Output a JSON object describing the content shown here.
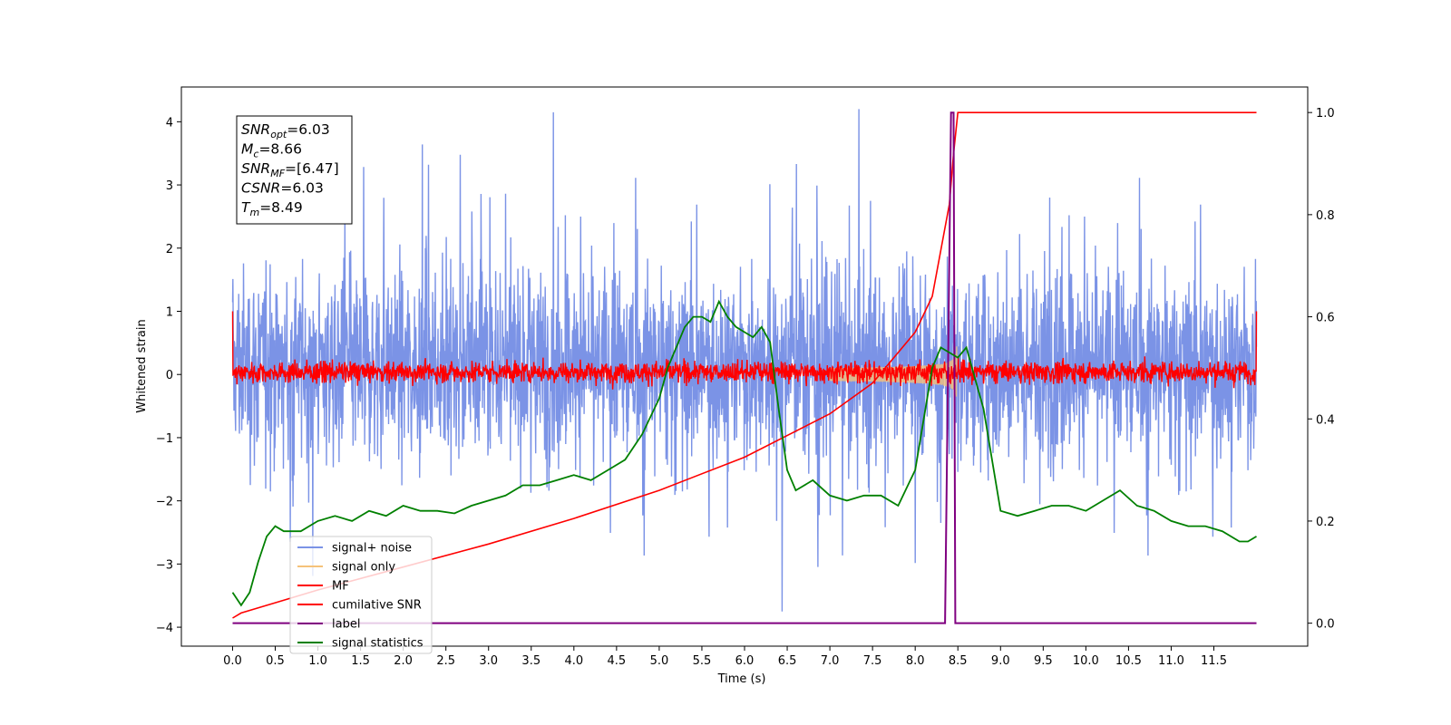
{
  "chart_data": {
    "type": "line",
    "xlabel": "Time (s)",
    "ylabel": "Whitened strain",
    "xlim": [
      -0.6,
      12.6
    ],
    "ylim": [
      -4.3,
      4.55
    ],
    "y2lim": [
      -0.045,
      1.05
    ],
    "x_ticks": [
      "0.0",
      "0.5",
      "1.0",
      "1.5",
      "2.0",
      "2.5",
      "3.0",
      "3.5",
      "4.0",
      "4.5",
      "5.0",
      "5.5",
      "6.0",
      "6.5",
      "7.0",
      "7.5",
      "8.0",
      "8.5",
      "9.0",
      "9.5",
      "10.0",
      "10.5",
      "11.0",
      "11.5"
    ],
    "y_ticks": [
      "4",
      "3",
      "2",
      "1",
      "0",
      "−1",
      "−2",
      "−3",
      "−4"
    ],
    "y2_ticks": [
      "1.0",
      "0.8",
      "0.6",
      "0.4",
      "0.2",
      "0.0"
    ],
    "annotation": [
      {
        "main": "SNR",
        "sub": "opt",
        "rest": "=6.03"
      },
      {
        "main": "M",
        "sub": "c",
        "rest": "=8.66"
      },
      {
        "main": "SNR",
        "sub": "MF",
        "rest": "=[6.47]"
      },
      {
        "main": "CSNR",
        "sub": "",
        "rest": "=6.03"
      },
      {
        "main": "T",
        "sub": "m",
        "rest": "=8.49"
      }
    ],
    "legend": [
      "signal+ noise",
      "signal only",
      "MF",
      "cumilative SNR",
      "label",
      "signal statistics"
    ],
    "legend_placement": "lower-left",
    "series": [
      {
        "name": "signal+ noise",
        "axis": "left",
        "color": "#7b93e6",
        "kind": "noise",
        "band": [
          -2.2,
          2.5
        ],
        "peaks": [
          4.15,
          -3.75
        ],
        "x_range": [
          0,
          12
        ]
      },
      {
        "name": "signal only",
        "axis": "left",
        "color": "#f5c27a",
        "kind": "chirp",
        "amplitude_max": 0.5,
        "merger_time": 8.49
      },
      {
        "name": "MF",
        "axis": "left",
        "color": "#ff0000",
        "kind": "noise",
        "band": [
          -0.25,
          0.35
        ],
        "edge_value": 1.0,
        "x_range": [
          0,
          12
        ]
      },
      {
        "name": "cumilative SNR",
        "axis": "right",
        "color": "#ff0000",
        "x": [
          0,
          0.1,
          0.5,
          1,
          2,
          3,
          4,
          5,
          6,
          7,
          7.5,
          8,
          8.2,
          8.4,
          8.45,
          8.5,
          10,
          12
        ],
        "y": [
          0.01,
          0.02,
          0.04,
          0.065,
          0.11,
          0.155,
          0.205,
          0.26,
          0.325,
          0.41,
          0.47,
          0.57,
          0.64,
          0.82,
          0.92,
          1.0,
          1.0,
          1.0
        ]
      },
      {
        "name": "label",
        "axis": "right",
        "color": "#800080",
        "x": [
          0,
          8.35,
          8.42,
          8.45,
          8.47,
          12
        ],
        "y": [
          0,
          0,
          1.0,
          1.0,
          0,
          0
        ]
      },
      {
        "name": "signal statistics",
        "axis": "right",
        "color": "#008000",
        "x": [
          0,
          0.1,
          0.2,
          0.3,
          0.4,
          0.5,
          0.6,
          0.8,
          1.0,
          1.2,
          1.4,
          1.6,
          1.8,
          2.0,
          2.2,
          2.4,
          2.6,
          2.8,
          3.0,
          3.2,
          3.4,
          3.6,
          3.8,
          4.0,
          4.2,
          4.4,
          4.6,
          4.8,
          5.0,
          5.1,
          5.2,
          5.3,
          5.4,
          5.5,
          5.6,
          5.7,
          5.8,
          5.9,
          6.0,
          6.1,
          6.2,
          6.3,
          6.4,
          6.5,
          6.6,
          6.8,
          7.0,
          7.2,
          7.4,
          7.6,
          7.8,
          8.0,
          8.1,
          8.2,
          8.3,
          8.4,
          8.5,
          8.6,
          8.7,
          8.8,
          8.9,
          9.0,
          9.2,
          9.4,
          9.6,
          9.8,
          10.0,
          10.2,
          10.4,
          10.6,
          10.8,
          11.0,
          11.2,
          11.4,
          11.6,
          11.8,
          11.9,
          12.0
        ],
        "y": [
          0.06,
          0.035,
          0.06,
          0.12,
          0.17,
          0.19,
          0.18,
          0.18,
          0.2,
          0.21,
          0.2,
          0.22,
          0.21,
          0.23,
          0.22,
          0.22,
          0.215,
          0.23,
          0.24,
          0.25,
          0.27,
          0.27,
          0.28,
          0.29,
          0.28,
          0.3,
          0.32,
          0.37,
          0.44,
          0.5,
          0.54,
          0.58,
          0.6,
          0.6,
          0.59,
          0.63,
          0.6,
          0.58,
          0.57,
          0.56,
          0.58,
          0.55,
          0.42,
          0.3,
          0.26,
          0.28,
          0.25,
          0.24,
          0.25,
          0.25,
          0.23,
          0.3,
          0.4,
          0.5,
          0.54,
          0.53,
          0.52,
          0.54,
          0.48,
          0.42,
          0.32,
          0.22,
          0.21,
          0.22,
          0.23,
          0.23,
          0.22,
          0.24,
          0.26,
          0.23,
          0.22,
          0.2,
          0.19,
          0.19,
          0.18,
          0.16,
          0.16,
          0.17
        ]
      }
    ]
  }
}
